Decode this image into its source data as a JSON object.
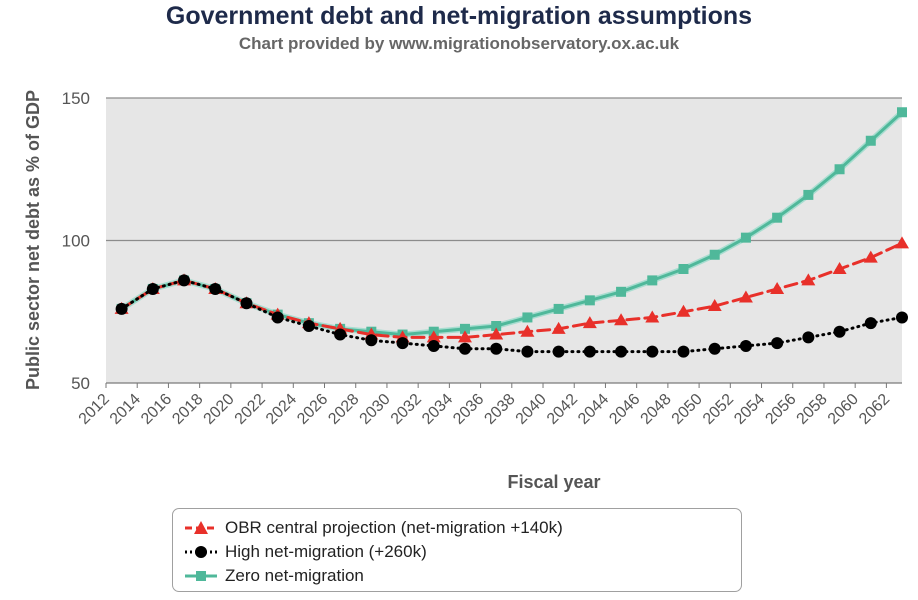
{
  "chart_data": {
    "type": "line",
    "title": "Government debt and net-migration assumptions",
    "subtitle": "Chart provided by www.migrationobservatory.ox.ac.uk",
    "xlabel": "Fiscal year",
    "ylabel": "Public sector net debt as % of GDP",
    "xlim": [
      2012,
      2063
    ],
    "ylim": [
      50,
      150
    ],
    "yticks": [
      50,
      100,
      150
    ],
    "xticks": [
      2012,
      2014,
      2016,
      2018,
      2020,
      2022,
      2024,
      2026,
      2028,
      2030,
      2032,
      2034,
      2036,
      2038,
      2040,
      2042,
      2044,
      2046,
      2048,
      2050,
      2052,
      2054,
      2056,
      2058,
      2060,
      2062
    ],
    "x": [
      2013,
      2015,
      2017,
      2019,
      2021,
      2023,
      2025,
      2027,
      2029,
      2031,
      2033,
      2035,
      2037,
      2039,
      2041,
      2043,
      2045,
      2047,
      2049,
      2051,
      2053,
      2055,
      2057,
      2059,
      2061,
      2063
    ],
    "series": [
      {
        "name": "OBR central projection (net-migration +140k)",
        "color": "#e8302a",
        "marker": "triangle",
        "dash": "dashed",
        "values": [
          76,
          83,
          86,
          83,
          78,
          74,
          71,
          69,
          67,
          66,
          66,
          66,
          67,
          68,
          69,
          71,
          72,
          73,
          75,
          77,
          80,
          83,
          86,
          90,
          94,
          99
        ]
      },
      {
        "name": "High net-migration (+260k)",
        "color": "#000000",
        "marker": "circle",
        "dash": "dotted",
        "values": [
          76,
          83,
          86,
          83,
          78,
          73,
          70,
          67,
          65,
          64,
          63,
          62,
          62,
          61,
          61,
          61,
          61,
          61,
          61,
          62,
          63,
          64,
          66,
          68,
          71,
          73
        ]
      },
      {
        "name": "Zero net-migration",
        "color": "#4fb89a",
        "marker": "square",
        "dash": "solid",
        "values": [
          76,
          83,
          86,
          83,
          78,
          74,
          71,
          69,
          68,
          67,
          68,
          69,
          70,
          73,
          76,
          79,
          82,
          86,
          90,
          95,
          101,
          108,
          116,
          125,
          135,
          145
        ]
      }
    ]
  }
}
